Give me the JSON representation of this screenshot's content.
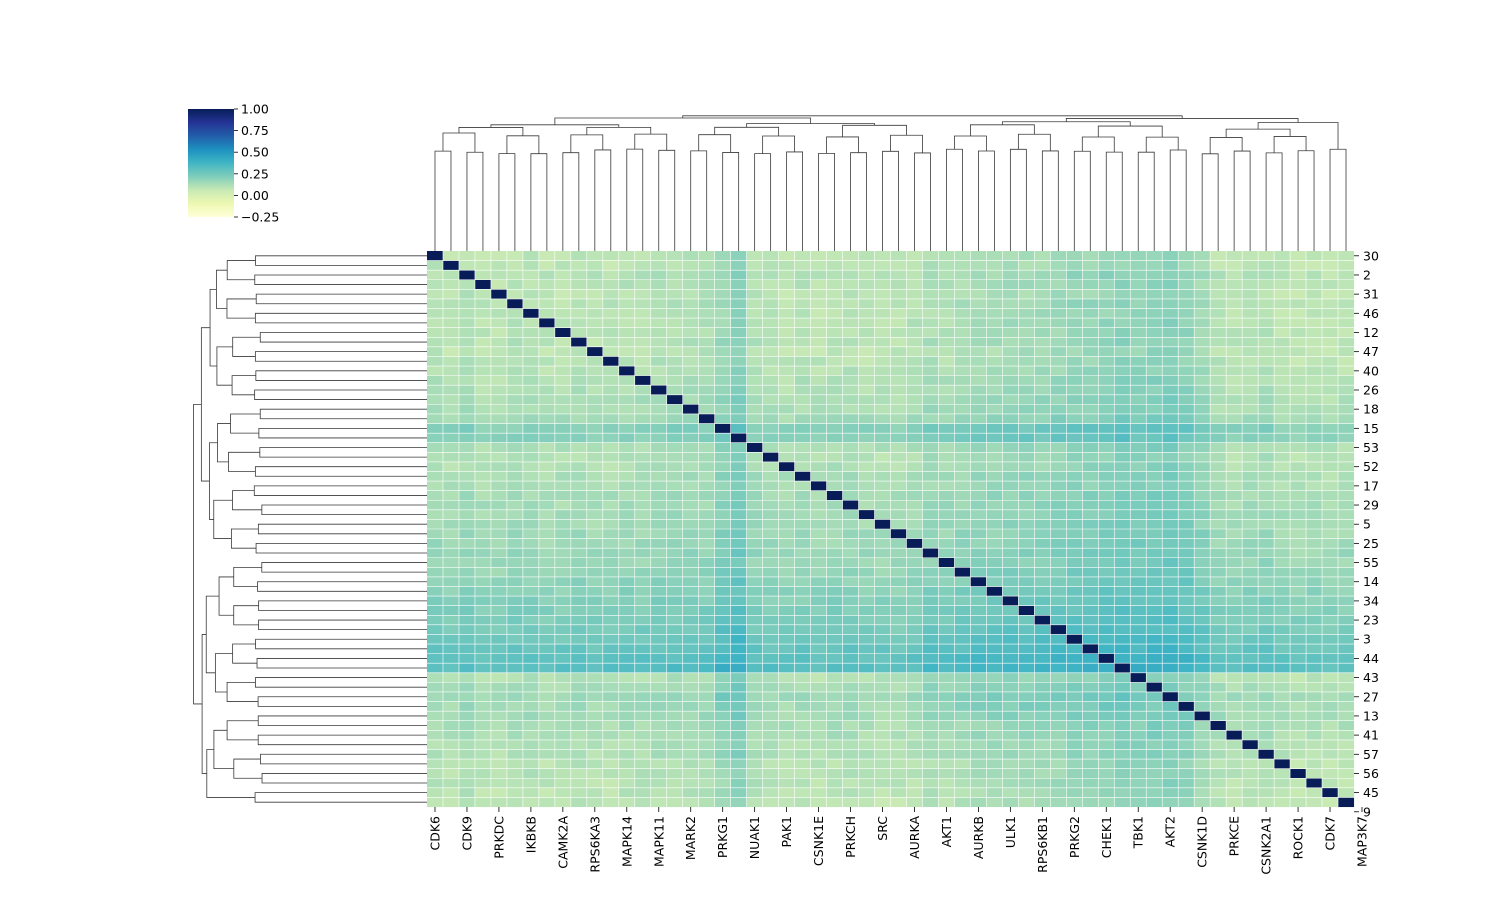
{
  "chart_data": {
    "type": "heatmap",
    "colormap": "YlGnBu",
    "colorbar": {
      "vmin": -0.25,
      "vmax": 1.0,
      "ticks": [
        "1.00",
        "0.75",
        "0.50",
        "0.25",
        "0.00",
        "−0.25"
      ],
      "tick_values": [
        1.0,
        0.75,
        0.5,
        0.25,
        0.0,
        -0.25
      ],
      "stops": [
        "#ffffd9",
        "#edf8b1",
        "#c7e9b4",
        "#7fcdbb",
        "#41b6c4",
        "#1d91c0",
        "#225ea8",
        "#253494",
        "#081d58"
      ]
    },
    "n_rows": 58,
    "n_cols": 58,
    "diagonal_value": 1.0,
    "column_labels": [
      "CDK6",
      "CDK9",
      "PRKDC",
      "IKBKB",
      "CAMK2A",
      "RPS6KA3",
      "MAPK14",
      "MAPK11",
      "MARK2",
      "PRKG1",
      "NUAK1",
      "PAK1",
      "CSNK1E",
      "PRKCH",
      "SRC",
      "AURKA",
      "AKT1",
      "AURKB",
      "ULK1",
      "RPS6KB1",
      "PRKG2",
      "CHEK1",
      "TBK1",
      "AKT2",
      "CSNK1D",
      "PRKCE",
      "CSNK2A1",
      "ROCK1",
      "CDK7",
      "MAP3K7"
    ],
    "row_labels": [
      "30",
      "2",
      "31",
      "46",
      "12",
      "47",
      "40",
      "26",
      "18",
      "15",
      "53",
      "52",
      "17",
      "29",
      "5",
      "25",
      "55",
      "14",
      "34",
      "23",
      "3",
      "44",
      "43",
      "27",
      "13",
      "41",
      "57",
      "56",
      "45",
      "9"
    ],
    "col_band_profile": [
      0.12,
      0.1,
      0.14,
      0.1,
      0.1,
      0.12,
      0.12,
      0.1,
      0.1,
      0.12,
      0.1,
      0.1,
      0.12,
      0.12,
      0.14,
      0.14,
      0.14,
      0.14,
      0.18,
      0.24,
      0.14,
      0.12,
      0.1,
      0.12,
      0.1,
      0.12,
      0.12,
      0.1,
      0.1,
      0.1,
      0.12,
      0.12,
      0.1,
      0.12,
      0.14,
      0.14,
      0.16,
      0.16,
      0.16,
      0.18,
      0.2,
      0.2,
      0.22,
      0.24,
      0.26,
      0.28,
      0.3,
      0.26,
      0.2,
      0.12,
      0.1,
      0.12,
      0.14,
      0.1,
      0.08,
      0.1,
      0.08,
      0.1
    ],
    "row_band_profile": [
      0.02,
      0.03,
      0.04,
      0.04,
      0.03,
      0.04,
      0.03,
      0.04,
      0.04,
      0.04,
      0.03,
      0.04,
      0.04,
      0.05,
      0.05,
      0.06,
      0.06,
      0.08,
      0.14,
      0.12,
      0.06,
      0.05,
      0.06,
      0.07,
      0.07,
      0.08,
      0.08,
      0.09,
      0.09,
      0.1,
      0.1,
      0.11,
      0.11,
      0.12,
      0.13,
      0.14,
      0.15,
      0.16,
      0.17,
      0.18,
      0.2,
      0.22,
      0.24,
      0.26,
      0.02,
      0.04,
      0.06,
      0.06,
      0.07,
      0.07,
      0.07,
      0.05,
      0.05,
      0.04,
      0.05,
      0.04,
      0.04,
      0.03
    ]
  }
}
